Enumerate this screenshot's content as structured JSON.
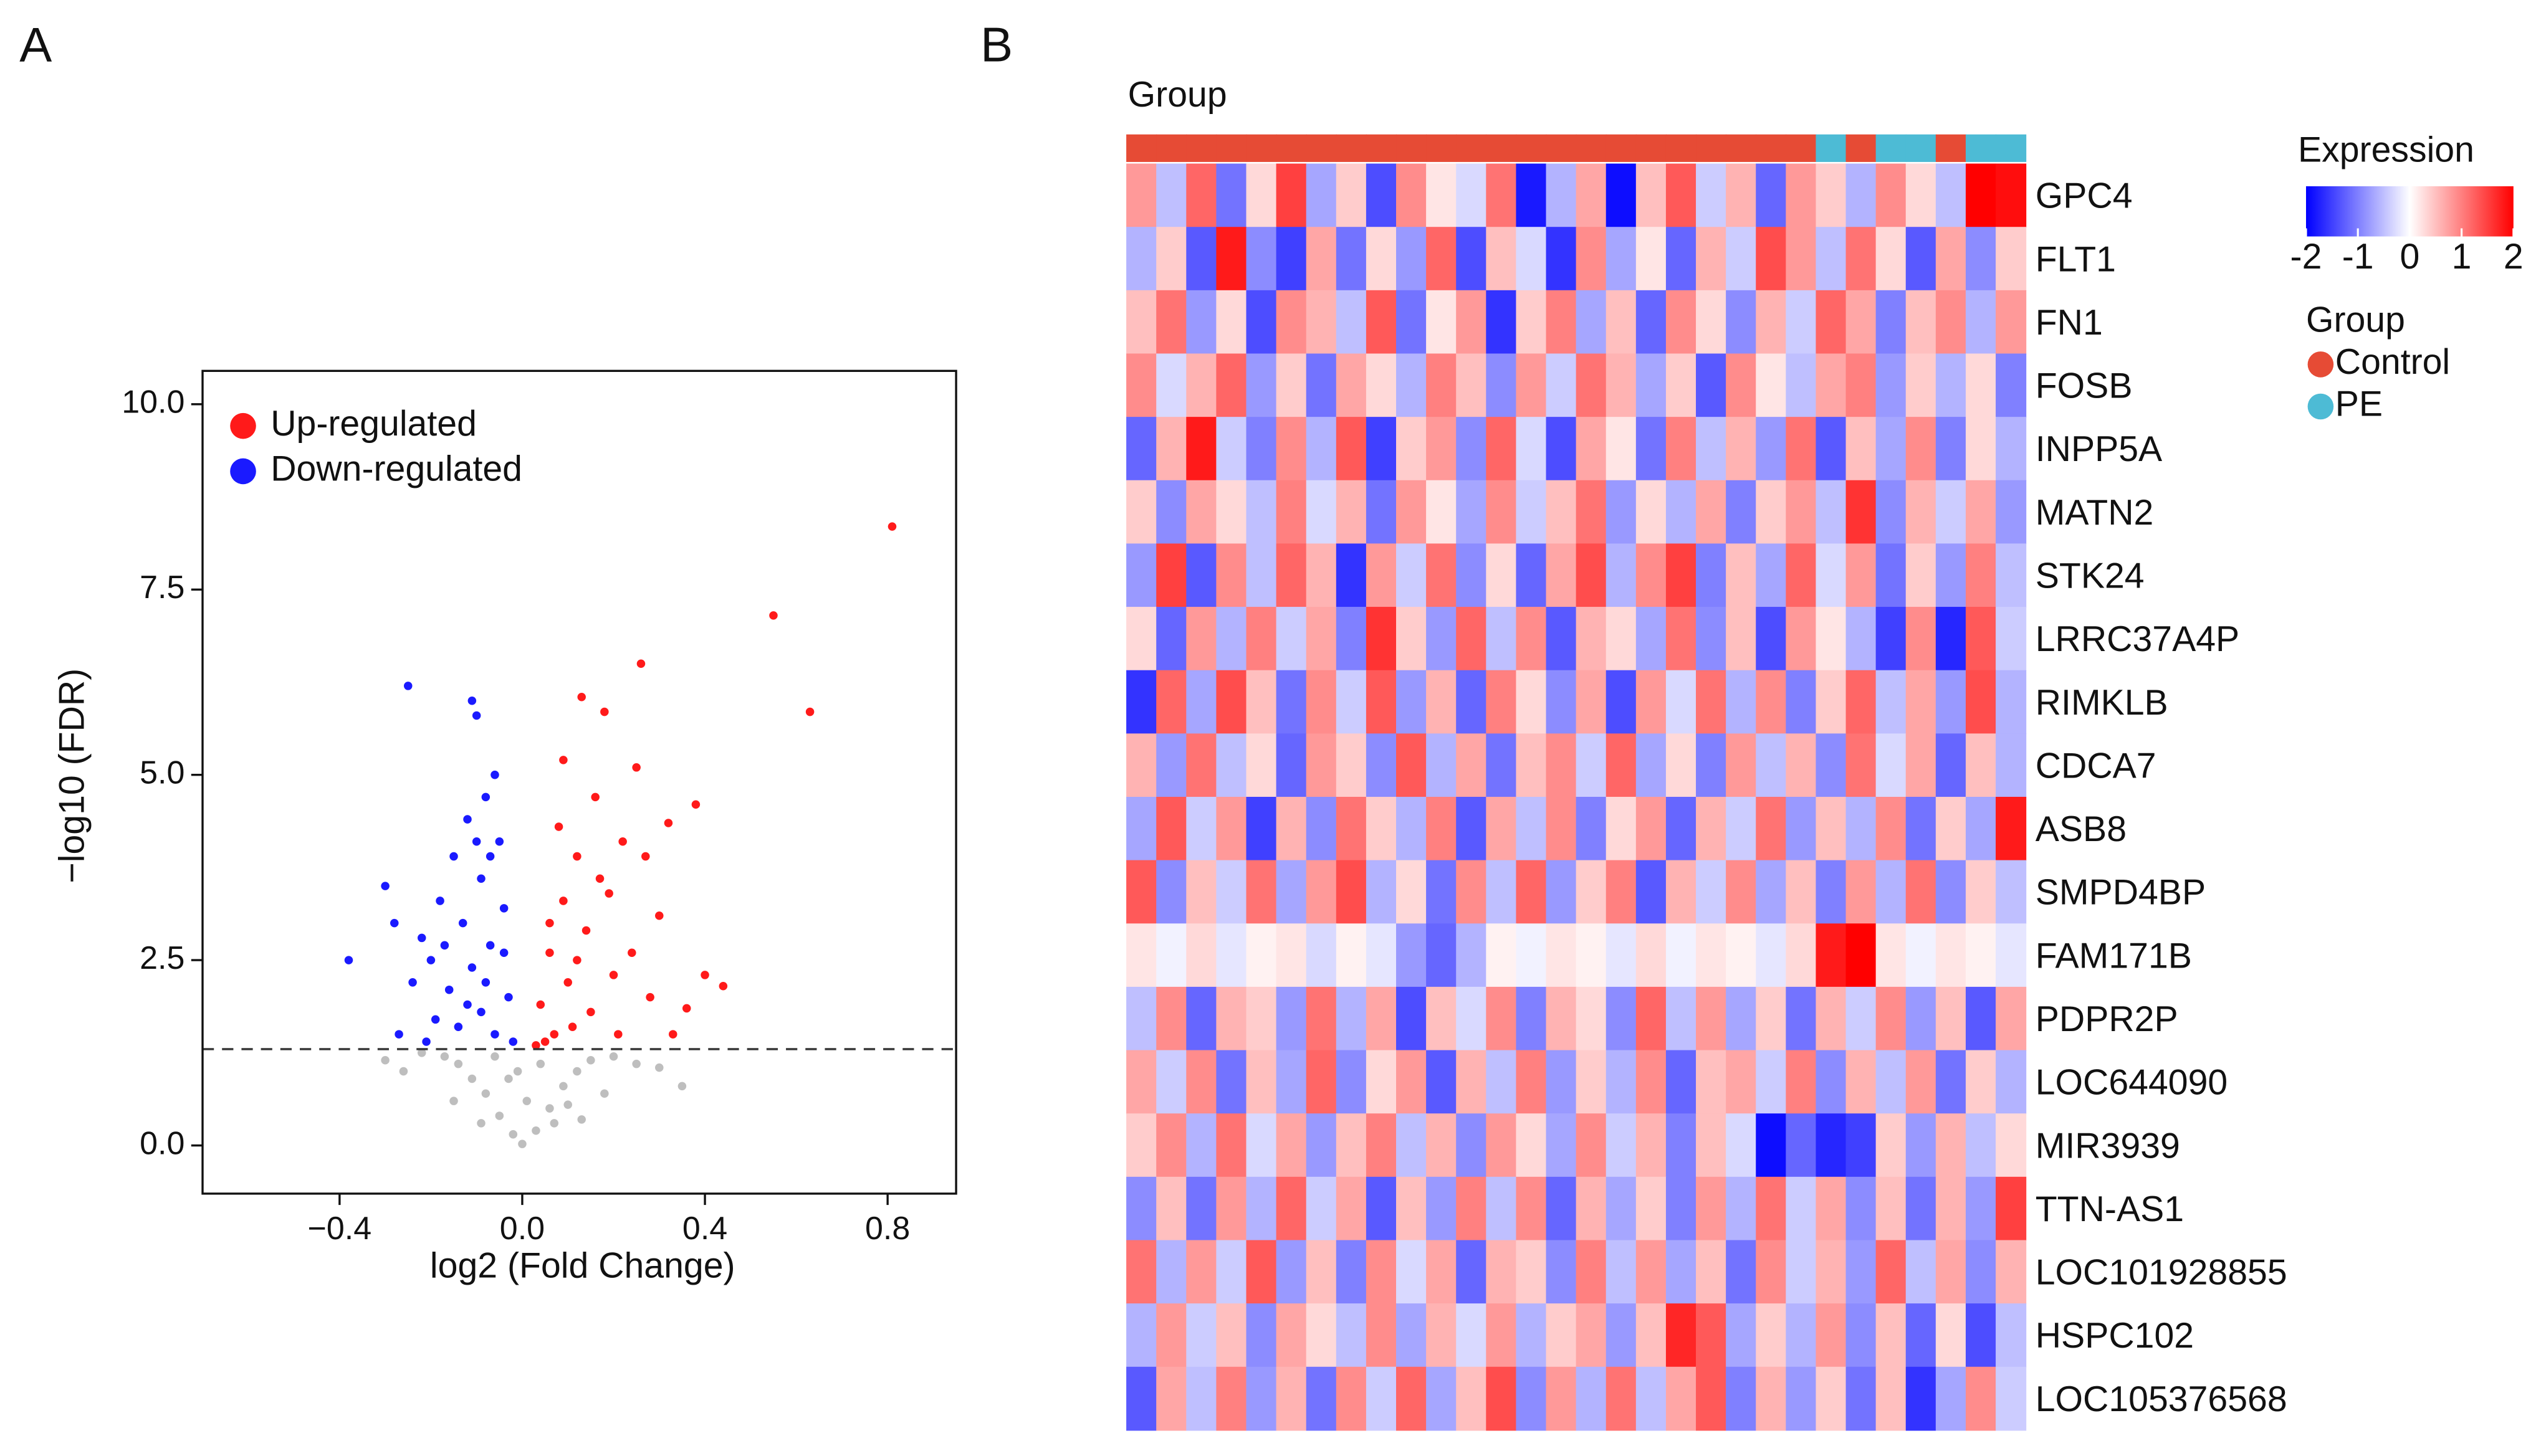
{
  "panel_labels": [
    "A",
    "B"
  ],
  "chart_data": [
    {
      "type": "scatter",
      "xlabel": "log2 (Fold Change)",
      "ylabel": "−log10 (FDR)",
      "xlim": [
        -0.7,
        0.95
      ],
      "ylim": [
        -0.65,
        10.45
      ],
      "xticks": [
        {
          "value": -0.4,
          "label": "−0.4"
        },
        {
          "value": 0,
          "label": "0.0"
        },
        {
          "value": 0.4,
          "label": "0.4"
        },
        {
          "value": 0.8,
          "label": "0.8"
        }
      ],
      "yticks": [
        {
          "value": 0,
          "label": "0.0"
        },
        {
          "value": 2.5,
          "label": "2.5"
        },
        {
          "value": 5,
          "label": "5.0"
        },
        {
          "value": 7.5,
          "label": "7.5"
        },
        {
          "value": 10,
          "label": "10.0"
        }
      ],
      "hline": 1.3,
      "legend": "upper left",
      "series": [
        {
          "color": "#bebebe",
          "x": [
            0,
            -0.02,
            0.03,
            -0.05,
            0.06,
            -0.08,
            0.09,
            -0.11,
            0.12,
            -0.14,
            0.15,
            -0.17,
            0.2,
            -0.22,
            0.25,
            0.3,
            -0.26,
            0.01,
            -0.03,
            0.04,
            -0.06,
            0.07,
            -0.09,
            0.1,
            0.18,
            -0.15,
            0.35,
            -0.3,
            0.13,
            -0.01
          ],
          "values": [
            0.02,
            0.15,
            0.2,
            0.4,
            0.5,
            0.7,
            0.8,
            0.9,
            1.0,
            1.1,
            1.15,
            1.2,
            1.2,
            1.25,
            1.1,
            1.05,
            1.0,
            0.6,
            0.9,
            1.1,
            1.2,
            0.3,
            0.3,
            0.55,
            0.7,
            0.6,
            0.8,
            1.15,
            0.35,
            1.0
          ]
        },
        {
          "name": "Up-regulated",
          "color": "#ff1a1a",
          "x": [
            0.81,
            0.55,
            0.63,
            0.26,
            0.13,
            0.18,
            0.38,
            0.32,
            0.25,
            0.44,
            0.4,
            0.36,
            0.3,
            0.22,
            0.16,
            0.12,
            0.09,
            0.06,
            0.04,
            0.07,
            0.1,
            0.14,
            0.19,
            0.24,
            0.28,
            0.11,
            0.05,
            0.08,
            0.15,
            0.2,
            0.33,
            0.27,
            0.17,
            0.06,
            0.12,
            0.09,
            0.21,
            0.03
          ],
          "values": [
            8.35,
            7.15,
            5.85,
            6.5,
            6.05,
            5.85,
            4.6,
            4.35,
            5.1,
            2.15,
            2.3,
            1.85,
            3.1,
            4.1,
            4.7,
            3.9,
            3.3,
            2.6,
            1.9,
            1.5,
            2.2,
            2.9,
            3.4,
            2.6,
            2.0,
            1.6,
            1.4,
            4.3,
            1.8,
            2.3,
            1.5,
            3.9,
            3.6,
            3.0,
            2.5,
            5.2,
            1.5,
            1.35
          ]
        },
        {
          "name": "Down-regulated",
          "color": "#1a1aff",
          "x": [
            -0.25,
            -0.11,
            -0.1,
            -0.38,
            -0.3,
            -0.22,
            -0.27,
            -0.06,
            -0.08,
            -0.12,
            -0.05,
            -0.15,
            -0.09,
            -0.04,
            -0.13,
            -0.18,
            -0.07,
            -0.11,
            -0.16,
            -0.03,
            -0.2,
            -0.09,
            -0.14,
            -0.06,
            -0.19,
            -0.02,
            -0.24,
            -0.1,
            -0.07,
            -0.21,
            -0.12,
            -0.04,
            -0.17,
            -0.08,
            -0.28
          ],
          "values": [
            6.2,
            6.0,
            5.8,
            2.5,
            3.5,
            2.8,
            1.5,
            5.0,
            4.7,
            4.4,
            4.1,
            3.9,
            3.6,
            3.2,
            3.0,
            3.3,
            2.7,
            2.4,
            2.1,
            2.0,
            2.5,
            1.8,
            1.6,
            1.5,
            1.7,
            1.4,
            2.2,
            4.1,
            3.9,
            1.4,
            1.9,
            2.6,
            2.7,
            2.2,
            3.0
          ]
        }
      ]
    },
    {
      "type": "heatmap",
      "annotation_title": "Group",
      "colorbar_title": "Expression",
      "zlim": [
        -2,
        2
      ],
      "zticks": [
        -2,
        -1,
        0,
        1,
        2
      ],
      "colors": [
        "#0000ff",
        "#ffffff",
        "#ff0000"
      ],
      "group_title": "Group",
      "group_levels": [
        "Control",
        "PE"
      ],
      "group_colors": [
        "#e64b35",
        "#4dbbd5"
      ],
      "groups": [
        "Control",
        "Control",
        "Control",
        "Control",
        "Control",
        "Control",
        "Control",
        "Control",
        "Control",
        "Control",
        "Control",
        "Control",
        "Control",
        "Control",
        "Control",
        "Control",
        "Control",
        "Control",
        "Control",
        "Control",
        "Control",
        "Control",
        "Control",
        "PE",
        "Control",
        "PE",
        "PE",
        "Control",
        "PE",
        "PE"
      ],
      "rows": [
        "GPC4",
        "FLT1",
        "FN1",
        "FOSB",
        "INPP5A",
        "MATN2",
        "STK24",
        "LRRC37A4P",
        "RIMKLB",
        "CDCA7",
        "ASB8",
        "SMPD4BP",
        "FAM171B",
        "PDPR2P",
        "LOC644090",
        "MIR3939",
        "TTN-AS1",
        "LOC101928855",
        "HSPC102",
        "LOC105376568"
      ],
      "values": [
        [
          0.8,
          -0.5,
          1.2,
          -1.1,
          0.3,
          1.5,
          -0.7,
          0.4,
          -1.4,
          0.9,
          0.2,
          -0.3,
          1.1,
          -1.8,
          -0.6,
          0.7,
          -1.9,
          0.5,
          1.3,
          -0.4,
          0.6,
          -1.2,
          0.8,
          0.4,
          -0.6,
          0.9,
          0.3,
          -0.5,
          2.0,
          1.9
        ],
        [
          -0.6,
          0.4,
          -1.3,
          1.8,
          -0.9,
          -1.5,
          0.7,
          -1.1,
          0.3,
          -0.8,
          1.2,
          -1.4,
          0.5,
          -0.3,
          -1.6,
          0.9,
          -0.7,
          0.2,
          -1.2,
          0.6,
          -0.4,
          1.4,
          0.8,
          -0.5,
          1.1,
          0.3,
          -1.3,
          0.7,
          -0.9,
          0.4
        ],
        [
          0.5,
          1.1,
          -0.8,
          0.3,
          -1.4,
          0.9,
          0.6,
          -0.5,
          1.3,
          -1.1,
          0.2,
          0.8,
          -1.6,
          0.4,
          1.0,
          -0.7,
          0.5,
          -1.2,
          0.9,
          0.3,
          -0.9,
          0.6,
          -0.4,
          1.2,
          0.7,
          -1.0,
          0.5,
          0.9,
          -0.6,
          0.8
        ],
        [
          0.9,
          -0.3,
          0.6,
          1.2,
          -0.8,
          0.4,
          -1.1,
          0.7,
          0.3,
          -0.6,
          1.0,
          0.5,
          -0.9,
          0.8,
          -0.4,
          1.1,
          0.6,
          -0.7,
          0.4,
          -1.3,
          0.9,
          0.2,
          -0.5,
          0.7,
          1.0,
          -0.8,
          0.4,
          -0.6,
          0.3,
          -1.0
        ],
        [
          -1.2,
          0.6,
          1.8,
          -0.4,
          -1.0,
          0.9,
          -0.6,
          1.3,
          -1.5,
          0.4,
          0.8,
          -0.9,
          1.2,
          -0.3,
          -1.4,
          0.7,
          0.2,
          -1.1,
          1.0,
          -0.5,
          0.6,
          -0.8,
          1.1,
          -1.3,
          0.5,
          -0.7,
          0.9,
          -1.0,
          0.3,
          -0.6
        ],
        [
          0.4,
          -0.9,
          0.7,
          0.3,
          -0.5,
          1.0,
          -0.3,
          0.6,
          -1.1,
          0.8,
          0.2,
          -0.7,
          0.9,
          -0.4,
          0.5,
          1.1,
          -0.8,
          0.3,
          -0.6,
          0.7,
          -1.0,
          0.4,
          0.8,
          -0.5,
          1.6,
          -0.9,
          0.6,
          -0.4,
          0.7,
          -0.8
        ],
        [
          -0.8,
          1.5,
          -1.3,
          0.9,
          -0.5,
          1.2,
          0.6,
          -1.6,
          0.8,
          -0.4,
          1.1,
          -0.9,
          0.3,
          -1.2,
          0.7,
          1.4,
          -0.6,
          0.9,
          1.5,
          -1.0,
          0.5,
          -0.7,
          1.2,
          -0.3,
          0.8,
          -1.1,
          0.4,
          -0.8,
          1.0,
          -0.5
        ],
        [
          0.3,
          -1.2,
          0.8,
          -0.6,
          1.0,
          -0.4,
          0.7,
          -1.0,
          1.6,
          0.4,
          -0.8,
          1.2,
          -0.5,
          0.9,
          -1.3,
          0.6,
          0.3,
          -0.7,
          1.1,
          -0.9,
          0.5,
          -1.4,
          0.8,
          0.2,
          -0.6,
          -1.5,
          0.9,
          -1.7,
          1.3,
          -0.4
        ],
        [
          -1.6,
          1.2,
          -0.7,
          1.4,
          0.5,
          -1.1,
          0.9,
          -0.4,
          1.3,
          -0.8,
          0.6,
          -1.2,
          1.0,
          0.3,
          -0.9,
          0.7,
          -1.4,
          0.8,
          -0.3,
          1.1,
          -0.6,
          0.9,
          -1.0,
          0.4,
          1.2,
          -0.5,
          0.7,
          -0.8,
          1.4,
          -0.6
        ],
        [
          0.6,
          -0.8,
          1.1,
          -0.5,
          0.3,
          -1.2,
          0.8,
          0.4,
          -0.9,
          1.3,
          -0.6,
          0.7,
          -1.1,
          0.5,
          0.9,
          -0.4,
          1.2,
          -0.7,
          0.3,
          -1.0,
          0.8,
          -0.5,
          0.6,
          -0.9,
          1.1,
          -0.3,
          0.7,
          -1.2,
          0.5,
          -0.6
        ],
        [
          -0.7,
          1.3,
          -0.4,
          0.8,
          -1.5,
          0.6,
          -0.9,
          1.1,
          0.4,
          -0.6,
          1.0,
          -1.3,
          0.7,
          -0.5,
          0.9,
          -1.0,
          0.3,
          0.8,
          -1.2,
          0.6,
          -0.4,
          1.1,
          -0.8,
          0.5,
          -0.6,
          0.9,
          -1.1,
          0.4,
          -0.7,
          1.8
        ],
        [
          1.3,
          -0.9,
          0.5,
          -0.4,
          1.1,
          -0.7,
          0.8,
          1.4,
          -0.6,
          0.3,
          -1.1,
          0.9,
          -0.5,
          1.2,
          -0.8,
          0.4,
          1.0,
          -1.3,
          0.6,
          -0.4,
          0.9,
          -0.7,
          0.5,
          -1.0,
          0.8,
          -0.6,
          1.1,
          -0.9,
          0.4,
          -0.5
        ],
        [
          0.2,
          -0.1,
          0.3,
          -0.2,
          0.1,
          0.2,
          -0.3,
          0.1,
          -0.2,
          -0.8,
          -1.2,
          -0.6,
          0.1,
          -0.1,
          0.2,
          0.1,
          -0.2,
          0.3,
          -0.1,
          0.2,
          0.1,
          -0.2,
          0.3,
          1.8,
          2.0,
          0.2,
          -0.1,
          0.2,
          0.1,
          -0.2
        ],
        [
          -0.5,
          0.9,
          -1.2,
          0.6,
          0.4,
          -0.8,
          1.1,
          -0.6,
          0.7,
          -1.4,
          0.5,
          -0.3,
          0.9,
          -1.0,
          0.6,
          0.3,
          -0.9,
          1.2,
          -0.5,
          0.8,
          -0.7,
          0.4,
          -1.1,
          0.6,
          -0.4,
          0.9,
          -0.8,
          0.5,
          -1.3,
          0.7
        ],
        [
          0.7,
          -0.4,
          0.9,
          -1.1,
          0.5,
          -0.7,
          1.2,
          -0.9,
          0.3,
          0.8,
          -1.3,
          0.6,
          -0.5,
          1.0,
          -0.8,
          0.4,
          -0.6,
          0.9,
          -1.2,
          0.5,
          0.7,
          -0.4,
          1.0,
          -0.9,
          0.6,
          -0.5,
          0.8,
          -1.1,
          0.4,
          -0.6
        ],
        [
          0.4,
          0.9,
          -0.6,
          1.1,
          -0.3,
          0.7,
          -0.8,
          0.5,
          1.0,
          -0.5,
          0.6,
          -0.9,
          0.8,
          0.3,
          -0.7,
          0.9,
          -0.4,
          0.6,
          -1.0,
          0.5,
          -0.3,
          -1.9,
          -1.2,
          -1.7,
          -1.5,
          0.4,
          -0.8,
          0.6,
          -0.5,
          0.3
        ],
        [
          -0.9,
          0.5,
          -1.1,
          0.8,
          -0.6,
          1.2,
          -0.4,
          0.7,
          -1.3,
          0.5,
          -0.8,
          1.0,
          -0.5,
          0.9,
          -1.2,
          0.6,
          -0.7,
          0.4,
          -1.0,
          0.8,
          -0.6,
          1.1,
          -0.4,
          0.7,
          -0.9,
          0.5,
          -1.1,
          0.6,
          -0.8,
          1.5
        ],
        [
          1.1,
          -0.6,
          0.8,
          -0.4,
          1.3,
          -0.8,
          0.5,
          -1.0,
          0.9,
          -0.3,
          0.7,
          -1.2,
          0.6,
          0.4,
          -0.9,
          1.0,
          -0.5,
          0.8,
          -0.7,
          0.5,
          -1.1,
          0.9,
          -0.4,
          0.6,
          -0.8,
          1.2,
          -0.5,
          0.7,
          -0.9,
          0.6
        ],
        [
          -0.6,
          0.8,
          -0.4,
          0.5,
          -0.9,
          0.7,
          0.3,
          -0.5,
          0.9,
          -0.7,
          0.6,
          -0.3,
          0.8,
          -0.6,
          0.4,
          0.7,
          -0.8,
          0.5,
          1.7,
          1.3,
          -0.7,
          0.4,
          -0.6,
          0.8,
          -0.9,
          0.5,
          -1.2,
          0.3,
          -1.4,
          -0.5
        ],
        [
          -1.3,
          0.7,
          -0.5,
          1.0,
          -0.8,
          0.6,
          -1.1,
          0.9,
          -0.4,
          1.2,
          -0.7,
          0.5,
          1.4,
          -0.9,
          0.8,
          -0.6,
          1.1,
          -0.5,
          0.7,
          1.3,
          -1.0,
          0.6,
          -0.8,
          0.4,
          -1.1,
          0.5,
          -1.6,
          -0.7,
          0.9,
          -0.4
        ]
      ]
    }
  ]
}
